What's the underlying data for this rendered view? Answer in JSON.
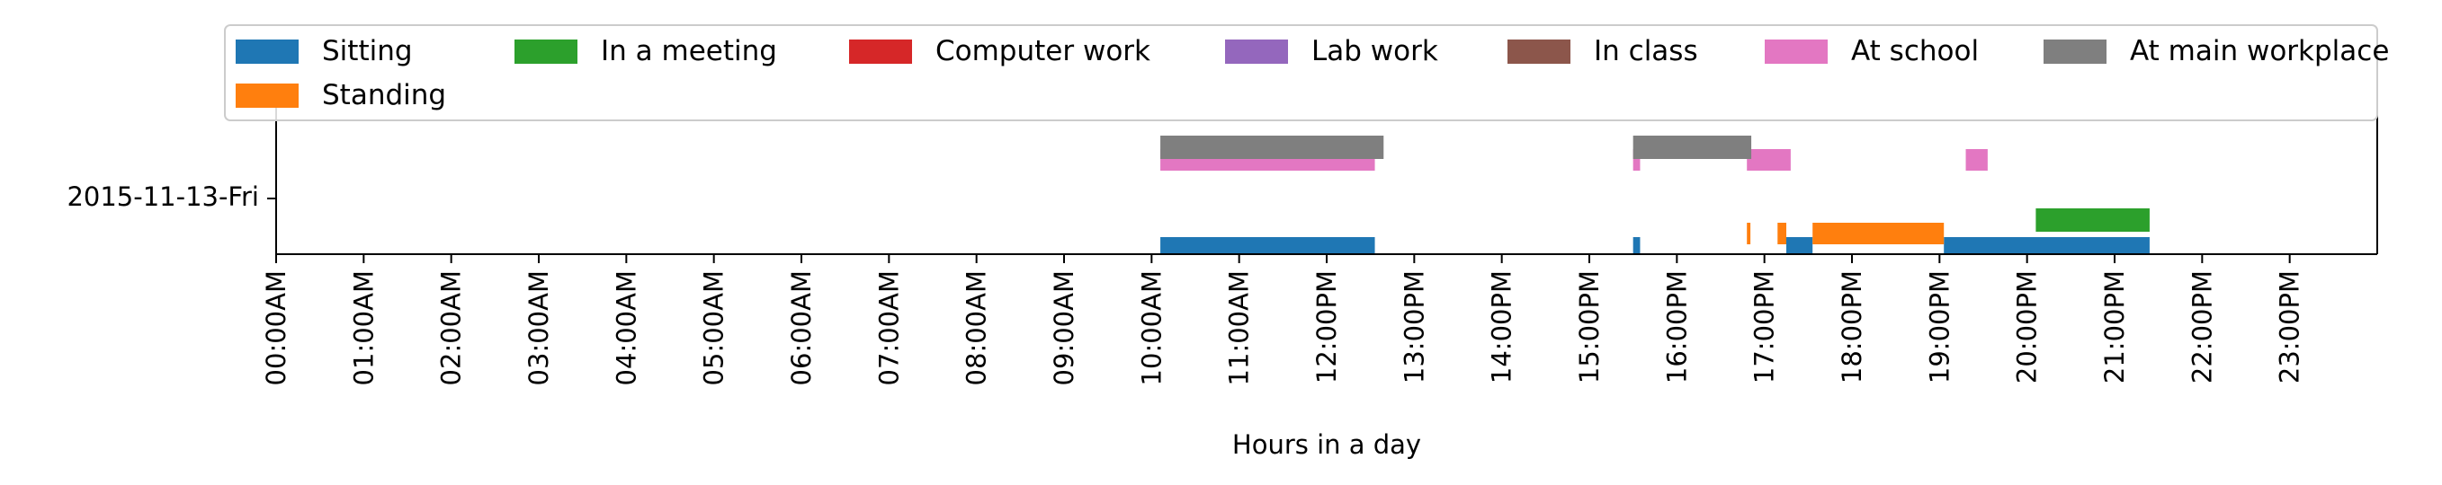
{
  "chart_data": {
    "type": "timeline",
    "title": "",
    "xlabel": "Hours in a day",
    "ylabel": "",
    "xlim": [
      0,
      24
    ],
    "x_ticks": [
      0,
      1,
      2,
      3,
      4,
      5,
      6,
      7,
      8,
      9,
      10,
      11,
      12,
      13,
      14,
      15,
      16,
      17,
      18,
      19,
      20,
      21,
      22,
      23
    ],
    "x_tick_labels": [
      "00:00AM",
      "01:00AM",
      "02:00AM",
      "03:00AM",
      "04:00AM",
      "05:00AM",
      "06:00AM",
      "07:00AM",
      "08:00AM",
      "09:00AM",
      "10:00AM",
      "11:00AM",
      "12:00PM",
      "13:00PM",
      "14:00PM",
      "15:00PM",
      "16:00PM",
      "17:00PM",
      "18:00PM",
      "19:00PM",
      "20:00PM",
      "21:00PM",
      "22:00PM",
      "23:00PM"
    ],
    "y_tick_labels": [
      "2015-11-13-Fri"
    ],
    "legend_location": "top",
    "grid": false,
    "series": [
      {
        "name": "Sitting",
        "color": "#1f77b4",
        "intervals": [
          [
            10.1,
            12.55
          ],
          [
            15.5,
            15.58
          ],
          [
            17.25,
            17.55
          ],
          [
            19.05,
            21.4
          ]
        ]
      },
      {
        "name": "Standing",
        "color": "#ff7f0e",
        "intervals": [
          [
            16.8,
            16.84
          ],
          [
            17.15,
            17.25
          ],
          [
            17.55,
            19.05
          ]
        ]
      },
      {
        "name": "In a meeting",
        "color": "#2ca02c",
        "intervals": [
          [
            20.1,
            21.4
          ]
        ]
      },
      {
        "name": "Computer work",
        "color": "#d62728",
        "intervals": []
      },
      {
        "name": "Lab work",
        "color": "#9467bd",
        "intervals": []
      },
      {
        "name": "In class",
        "color": "#8c564b",
        "intervals": []
      },
      {
        "name": "At school",
        "color": "#e377c2",
        "intervals": [
          [
            10.1,
            12.55
          ],
          [
            15.5,
            15.58
          ],
          [
            16.8,
            17.3
          ],
          [
            19.3,
            19.55
          ]
        ]
      },
      {
        "name": "At main workplace",
        "color": "#7f7f7f",
        "intervals": [
          [
            10.1,
            12.65
          ],
          [
            15.5,
            16.85
          ]
        ]
      }
    ]
  }
}
